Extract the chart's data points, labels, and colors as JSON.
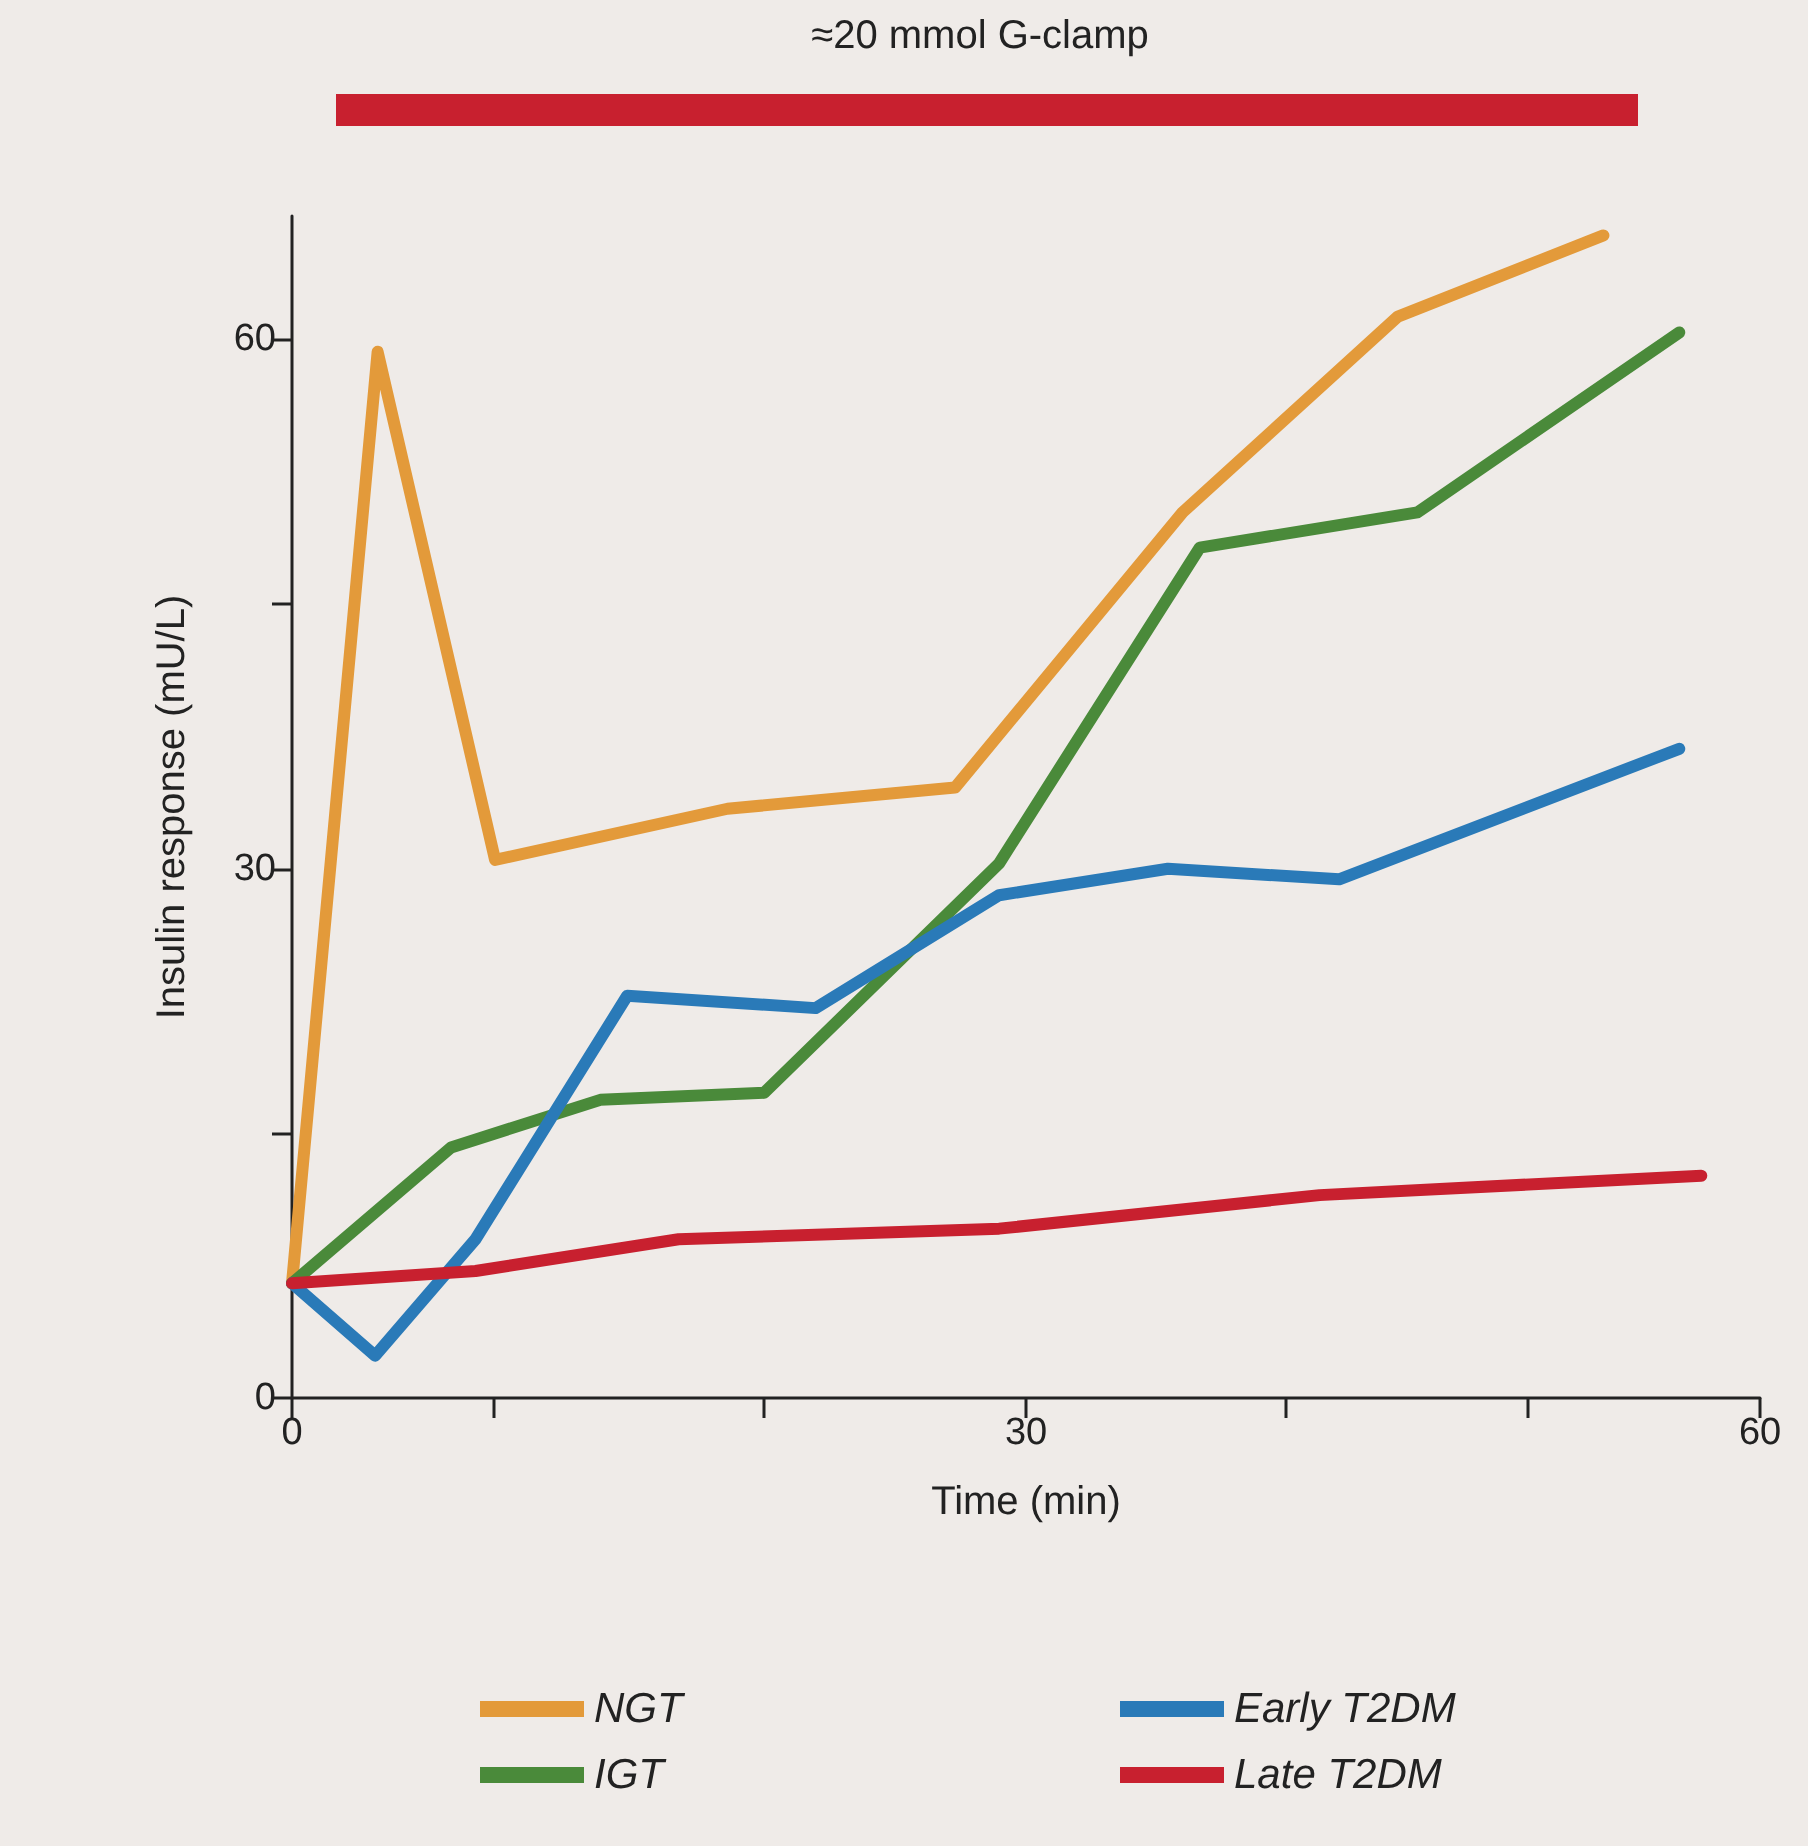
{
  "chart_data": {
    "type": "line",
    "xlabel": "Time (min)",
    "ylabel": "Insulin response (mU/L)",
    "xlim": [
      0,
      60
    ],
    "xticks": [
      0,
      {
        "value": 8.2,
        "label": null
      },
      {
        "value": 19.3,
        "label": null
      },
      30,
      {
        "value": 40.6,
        "label": null
      },
      {
        "value": 50.5,
        "label": null
      },
      60
    ],
    "ylim": [
      0,
      67
    ],
    "yticks": [
      0,
      {
        "value": 15,
        "label": null
      },
      30,
      {
        "value": 45,
        "label": null
      },
      60
    ],
    "grid": false,
    "legend": "bottom",
    "marker": "none",
    "line_style": "solid",
    "annotations": [
      "≈20 mmol G-clamp"
    ],
    "series": [
      {
        "name": "NGT",
        "color": "#e39a3a",
        "x": [
          0,
          3.5,
          8.3,
          17.8,
          27.1,
          36.4,
          45.2,
          53.6
        ],
        "values": [
          6.5,
          59.3,
          30.5,
          33.4,
          34.6,
          50.2,
          61.3,
          65.9
        ]
      },
      {
        "name": "IGT",
        "color": "#4a8a3a",
        "x": [
          0,
          6.5,
          12.6,
          19.3,
          28.9,
          37.1,
          46,
          56.7
        ],
        "values": [
          6.5,
          14.2,
          16.9,
          17.3,
          30.3,
          48.2,
          50.2,
          60.4
        ]
      },
      {
        "name": "Early T2DM",
        "color": "#2a7ab8",
        "x": [
          0,
          3.4,
          7.5,
          13.7,
          21.4,
          28.9,
          35.8,
          42.8,
          56.7
        ],
        "values": [
          6.5,
          2.4,
          9,
          22.8,
          22.1,
          28.5,
          30,
          29.4,
          36.8
        ]
      },
      {
        "name": "Late T2DM",
        "color": "#c8202f",
        "x": [
          0,
          7.5,
          15.8,
          28.9,
          42,
          57.6
        ],
        "values": [
          6.5,
          7.2,
          9,
          9.6,
          11.5,
          12.6
        ]
      }
    ]
  }
}
